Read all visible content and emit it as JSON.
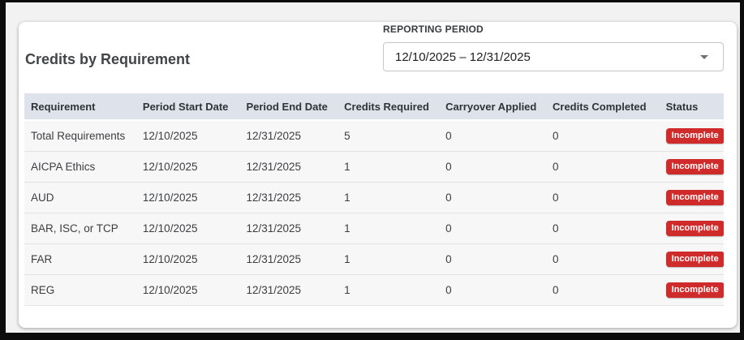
{
  "page": {
    "title": "Credits by Requirement"
  },
  "reporting_period": {
    "label": "REPORTING PERIOD",
    "selected_value": "12/10/2025 – 12/31/2025",
    "dropdown_icon": "caret-down-icon"
  },
  "table": {
    "columns": [
      "Requirement",
      "Period Start Date",
      "Period End Date",
      "Credits Required",
      "Carryover Applied",
      "Credits Completed",
      "Status"
    ],
    "rows": [
      {
        "requirement": "Total Requirements",
        "period_start_date": "12/10/2025",
        "period_end_date": "12/31/2025",
        "credits_required": "5",
        "carryover_applied": "0",
        "credits_completed": "0",
        "status": "Incomplete"
      },
      {
        "requirement": "AICPA Ethics",
        "period_start_date": "12/10/2025",
        "period_end_date": "12/31/2025",
        "credits_required": "1",
        "carryover_applied": "0",
        "credits_completed": "0",
        "status": "Incomplete"
      },
      {
        "requirement": "AUD",
        "period_start_date": "12/10/2025",
        "period_end_date": "12/31/2025",
        "credits_required": "1",
        "carryover_applied": "0",
        "credits_completed": "0",
        "status": "Incomplete"
      },
      {
        "requirement": "BAR, ISC, or TCP",
        "period_start_date": "12/10/2025",
        "period_end_date": "12/31/2025",
        "credits_required": "1",
        "carryover_applied": "0",
        "credits_completed": "0",
        "status": "Incomplete"
      },
      {
        "requirement": "FAR",
        "period_start_date": "12/10/2025",
        "period_end_date": "12/31/2025",
        "credits_required": "1",
        "carryover_applied": "0",
        "credits_completed": "0",
        "status": "Incomplete"
      },
      {
        "requirement": "REG",
        "period_start_date": "12/10/2025",
        "period_end_date": "12/31/2025",
        "credits_required": "1",
        "carryover_applied": "0",
        "credits_completed": "0",
        "status": "Incomplete"
      }
    ]
  },
  "colors": {
    "status_incomplete_bg": "#d02b2b",
    "status_incomplete_text": "#ffffff",
    "table_header_bg": "#dee3eb",
    "row_bg": "#f7f7f8",
    "card_bg": "#ffffff"
  }
}
